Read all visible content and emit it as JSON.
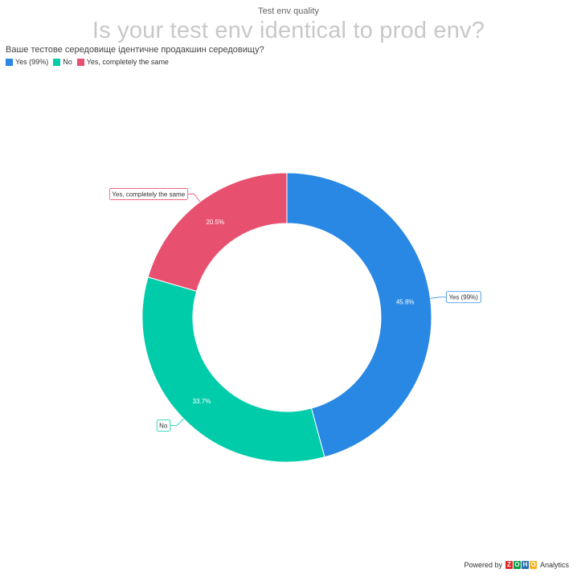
{
  "header": {
    "title": "Test env quality",
    "question": "Is your test env identical to prod env?",
    "subtitle": "Ваше тестове середовище ідентичне продакшин середовищу?"
  },
  "footer": {
    "powered_by": "Powered by",
    "brand_letters": [
      "Z",
      "O",
      "H",
      "O"
    ],
    "brand_colors": [
      "#e42527",
      "#089949",
      "#226db4",
      "#f9b21d"
    ],
    "product": "Analytics"
  },
  "chart_data": {
    "type": "pie",
    "donut": true,
    "title": "Is your test env identical to prod env?",
    "legend_position": "top-left",
    "slices": [
      {
        "label": "Yes (99%)",
        "value": 45.8,
        "value_label": "45.8%",
        "color": "#2888e3"
      },
      {
        "label": "No",
        "value": 33.7,
        "value_label": "33.7%",
        "color": "#00ccaa"
      },
      {
        "label": "Yes, completely the same",
        "value": 20.5,
        "value_label": "20.5%",
        "color": "#e8506f"
      }
    ]
  }
}
